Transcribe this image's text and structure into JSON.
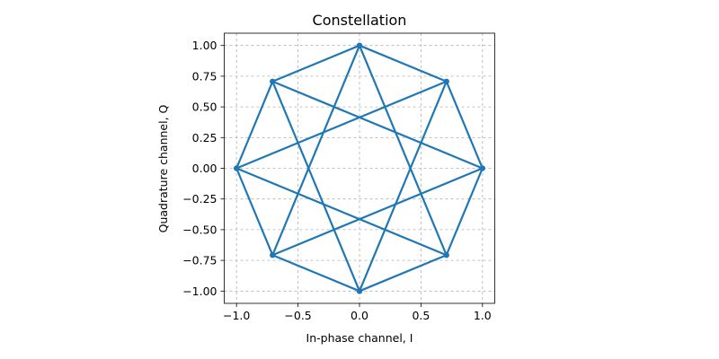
{
  "chart_data": {
    "type": "line",
    "title": "Constellation",
    "xlabel": "In-phase channel, I",
    "ylabel": "Quadrature channel, Q",
    "xlim": [
      -1.1,
      1.1
    ],
    "ylim": [
      -1.1,
      1.1
    ],
    "grid": true,
    "series_color": "#1f77b4",
    "x_ticks": [
      -1.0,
      -0.5,
      0.0,
      0.5,
      1.0
    ],
    "x_tick_labels": [
      "−1.0",
      "−0.5",
      "0.0",
      "0.5",
      "1.0"
    ],
    "y_ticks": [
      -1.0,
      -0.75,
      -0.5,
      -0.25,
      0.0,
      0.25,
      0.5,
      0.75,
      1.0
    ],
    "y_tick_labels": [
      "−1.00",
      "−0.75",
      "−0.50",
      "−0.25",
      "0.00",
      "0.25",
      "0.50",
      "0.75",
      "1.00"
    ],
    "points": [
      {
        "x": 1.0,
        "y": 0.0
      },
      {
        "x": 0.707,
        "y": 0.707
      },
      {
        "x": 0.0,
        "y": 1.0
      },
      {
        "x": -0.707,
        "y": 0.707
      },
      {
        "x": -1.0,
        "y": 0.0
      },
      {
        "x": -0.707,
        "y": -0.707
      },
      {
        "x": 0.0,
        "y": -1.0
      },
      {
        "x": 0.707,
        "y": -0.707
      }
    ],
    "segments": [
      [
        0,
        1
      ],
      [
        1,
        2
      ],
      [
        2,
        3
      ],
      [
        3,
        4
      ],
      [
        4,
        5
      ],
      [
        5,
        6
      ],
      [
        6,
        7
      ],
      [
        7,
        0
      ],
      [
        0,
        3
      ],
      [
        3,
        6
      ],
      [
        6,
        1
      ],
      [
        1,
        4
      ],
      [
        4,
        7
      ],
      [
        7,
        2
      ],
      [
        2,
        5
      ],
      [
        5,
        0
      ]
    ]
  }
}
